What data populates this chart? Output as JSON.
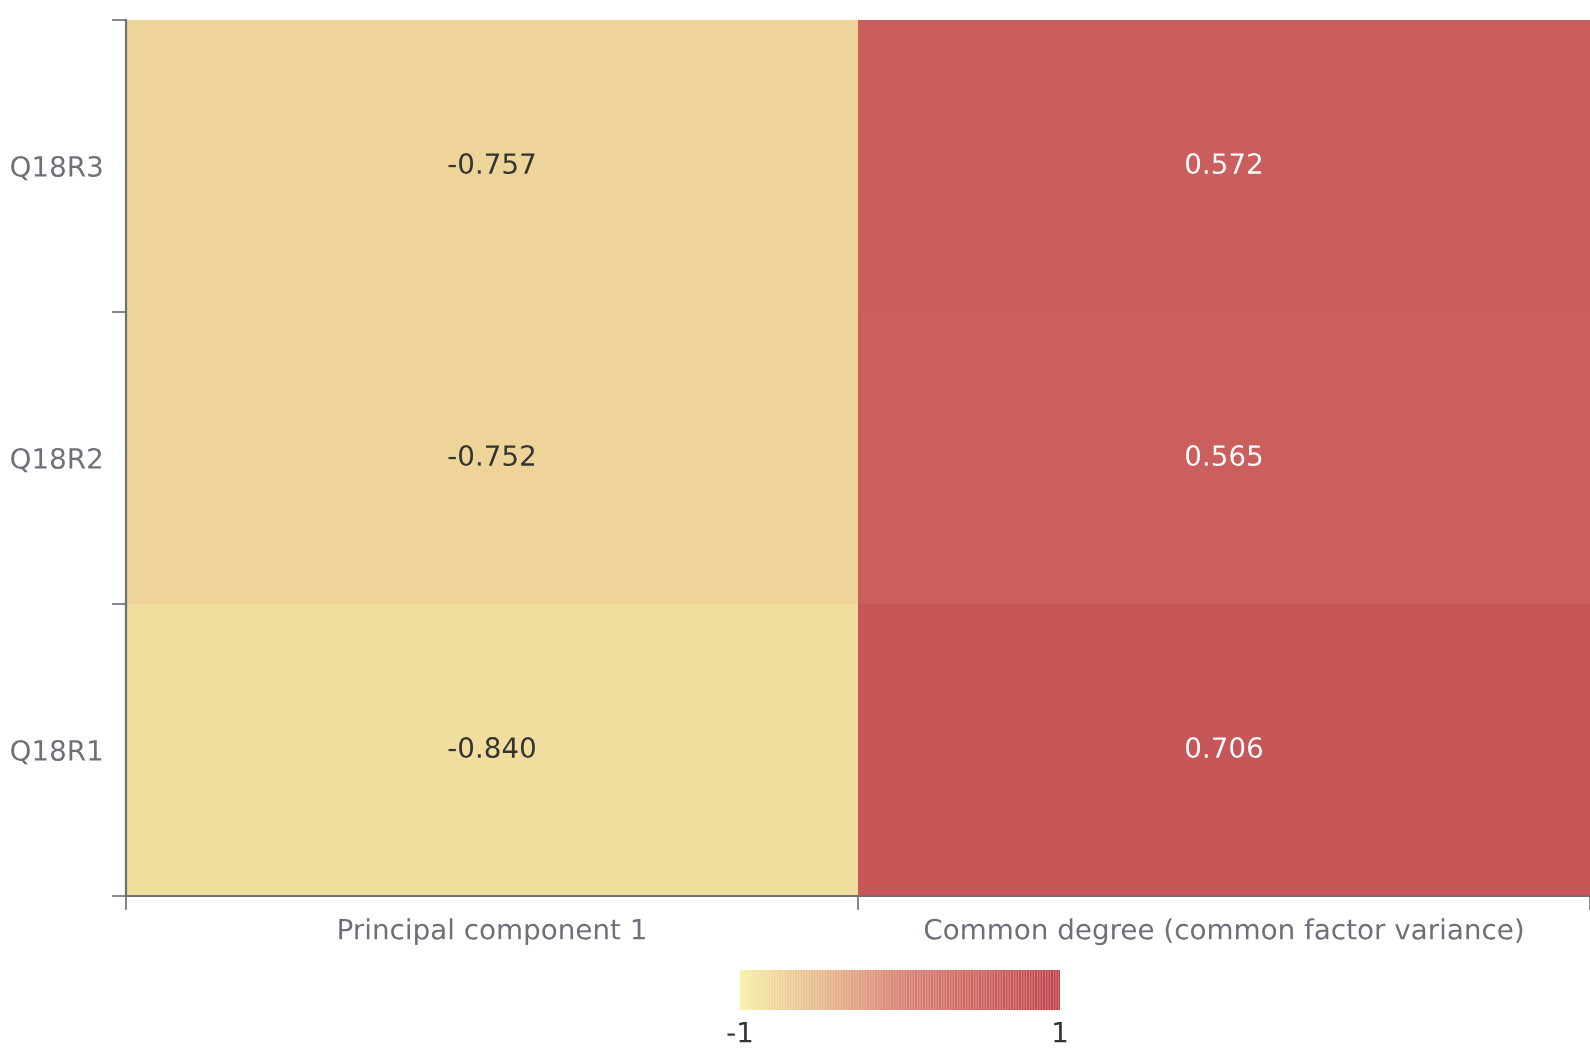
{
  "chart_data": {
    "type": "heatmap",
    "categories": [
      "Principal component 1",
      "Common degree (common factor variance)"
    ],
    "y_categories": [
      "Q18R3",
      "Q18R2",
      "Q18R1"
    ],
    "cells": [
      [
        -0.757,
        0.572
      ],
      [
        -0.752,
        0.565
      ],
      [
        -0.84,
        0.706
      ]
    ],
    "cell_labels": [
      [
        "-0.757",
        "0.572"
      ],
      [
        "-0.752",
        "0.565"
      ],
      [
        "-0.840",
        "0.706"
      ]
    ],
    "clim": [
      -1,
      1
    ],
    "cticks": [
      -1,
      1
    ],
    "colors": [
      "#f6efa6",
      "#d88273",
      "#bf444c"
    ]
  }
}
